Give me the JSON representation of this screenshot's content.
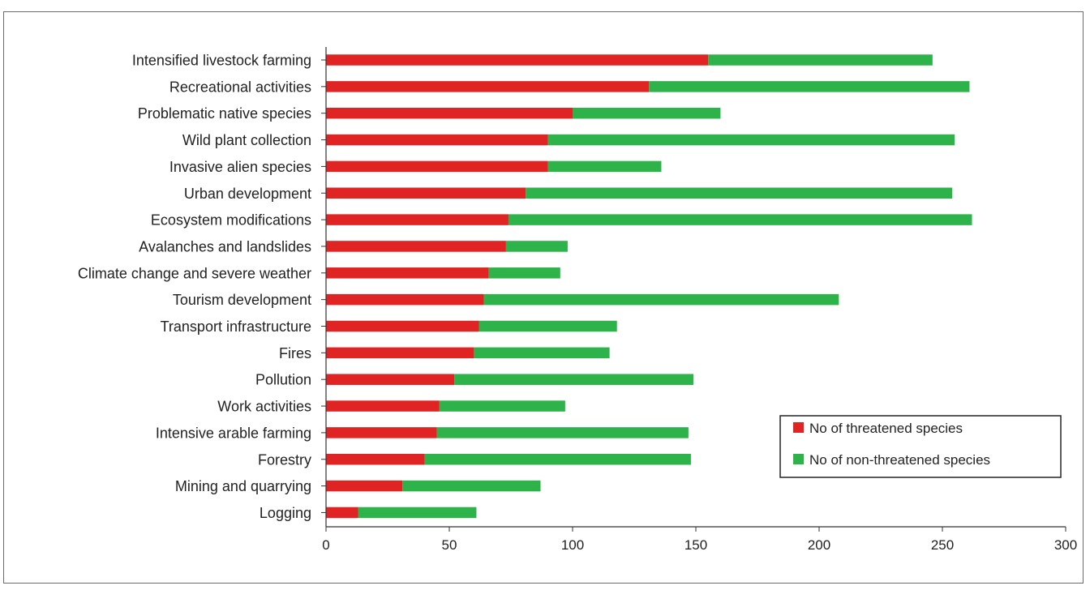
{
  "chart_data": {
    "type": "bar",
    "orientation": "horizontal",
    "stacked": true,
    "categories": [
      "Intensified livestock farming",
      "Recreational activities",
      "Problematic native species",
      "Wild plant collection",
      "Invasive alien species",
      "Urban development",
      "Ecosystem modifications",
      "Avalanches and landslides",
      "Climate change and severe weather",
      "Tourism development",
      "Transport infrastructure",
      "Fires",
      "Pollution",
      "Work activities",
      "Intensive arable farming",
      "Forestry",
      "Mining and quarrying",
      "Logging"
    ],
    "series": [
      {
        "name": "No of threatened species",
        "color": "#e02424",
        "values": [
          155,
          131,
          100,
          90,
          90,
          81,
          74,
          73,
          66,
          64,
          62,
          60,
          52,
          46,
          45,
          40,
          31,
          13
        ]
      },
      {
        "name": "No of non-threatened species",
        "color": "#2db34a",
        "values": [
          91,
          130,
          60,
          165,
          46,
          173,
          188,
          25,
          29,
          144,
          56,
          55,
          97,
          51,
          102,
          108,
          56,
          48
        ]
      }
    ],
    "xlim": [
      0,
      300
    ],
    "xticks": [
      0,
      50,
      100,
      150,
      200,
      250,
      300
    ],
    "title": "",
    "xlabel": "",
    "ylabel": "",
    "grid": false,
    "legend_position": "lower-right"
  }
}
